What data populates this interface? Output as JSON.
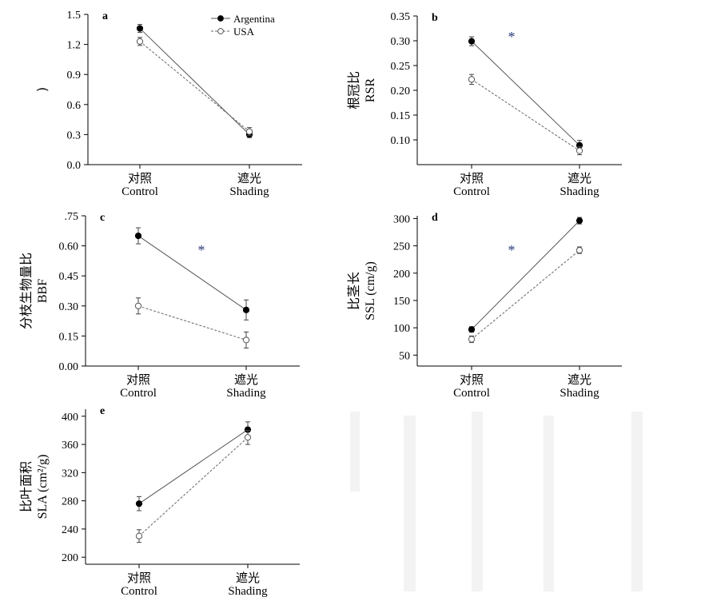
{
  "figure": {
    "legend": [
      {
        "name": "Argentina",
        "marker": "filled",
        "line": "solid"
      },
      {
        "name": "USA",
        "marker": "open",
        "line": "dashed"
      }
    ],
    "colors": {
      "axis": "#000000",
      "argentina_line": "#555555",
      "usa_line": "#666666",
      "asterisk": "#2b3c7a"
    }
  },
  "chart_data": [
    {
      "type": "line",
      "panel": "a",
      "categories": [
        "对照\nControl",
        "遮光\nShading"
      ],
      "ylabel": ")",
      "ylim": [
        0.0,
        1.5
      ],
      "yticks": [
        "0.0",
        "0.3",
        "0.6",
        "0.9",
        "1.2",
        "1.5"
      ],
      "significance": "",
      "series": [
        {
          "name": "Argentina",
          "values": [
            1.36,
            0.3
          ],
          "err": [
            0.04,
            0.03
          ]
        },
        {
          "name": "USA",
          "values": [
            1.23,
            0.33
          ],
          "err": [
            0.04,
            0.04
          ]
        }
      ]
    },
    {
      "type": "line",
      "panel": "b",
      "categories": [
        "对照\nControl",
        "遮光\nShading"
      ],
      "ylabel": "根冠比\nRSR",
      "ylim": [
        0.05,
        0.35
      ],
      "yticks": [
        "0.10",
        "0.15",
        "0.20",
        "0.25",
        "0.30",
        "0.35"
      ],
      "significance": "*",
      "series": [
        {
          "name": "Argentina",
          "values": [
            0.299,
            0.089
          ],
          "err": [
            0.009,
            0.01
          ]
        },
        {
          "name": "USA",
          "values": [
            0.222,
            0.078
          ],
          "err": [
            0.01,
            0.008
          ]
        }
      ]
    },
    {
      "type": "line",
      "panel": "c",
      "categories": [
        "对照\nControl",
        "遮光\nShading"
      ],
      "ylabel": "分枝生物量比\nBBF",
      "ylim": [
        0.0,
        0.75
      ],
      "yticks": [
        "0.00",
        "0.15",
        "0.30",
        "0.45",
        "0.60",
        ".75"
      ],
      "significance": "*",
      "series": [
        {
          "name": "Argentina",
          "values": [
            0.65,
            0.28
          ],
          "err": [
            0.04,
            0.05
          ]
        },
        {
          "name": "USA",
          "values": [
            0.3,
            0.13
          ],
          "err": [
            0.04,
            0.04
          ]
        }
      ]
    },
    {
      "type": "line",
      "panel": "d",
      "categories": [
        "对照\nControl",
        "遮光\nShading"
      ],
      "ylabel": "比茎长\nSSL (cm/g)",
      "ylim": [
        30,
        305
      ],
      "yticks": [
        "50",
        "100",
        "150",
        "200",
        "250",
        "300"
      ],
      "significance": "*",
      "series": [
        {
          "name": "Argentina",
          "values": [
            97,
            296
          ],
          "err": [
            5,
            6
          ]
        },
        {
          "name": "USA",
          "values": [
            79,
            242
          ],
          "err": [
            6,
            6
          ]
        }
      ]
    },
    {
      "type": "line",
      "panel": "e",
      "categories": [
        "对照\nControl",
        "遮光\nShading"
      ],
      "ylabel": "比叶面积\nSLA (cm²/g)",
      "ylim": [
        190,
        410
      ],
      "yticks": [
        "200",
        "240",
        "280",
        "320",
        "360",
        "400"
      ],
      "significance": "",
      "series": [
        {
          "name": "Argentina",
          "values": [
            276,
            381
          ],
          "err": [
            10,
            11
          ]
        },
        {
          "name": "USA",
          "values": [
            230,
            370
          ],
          "err": [
            9,
            10
          ]
        }
      ]
    }
  ]
}
